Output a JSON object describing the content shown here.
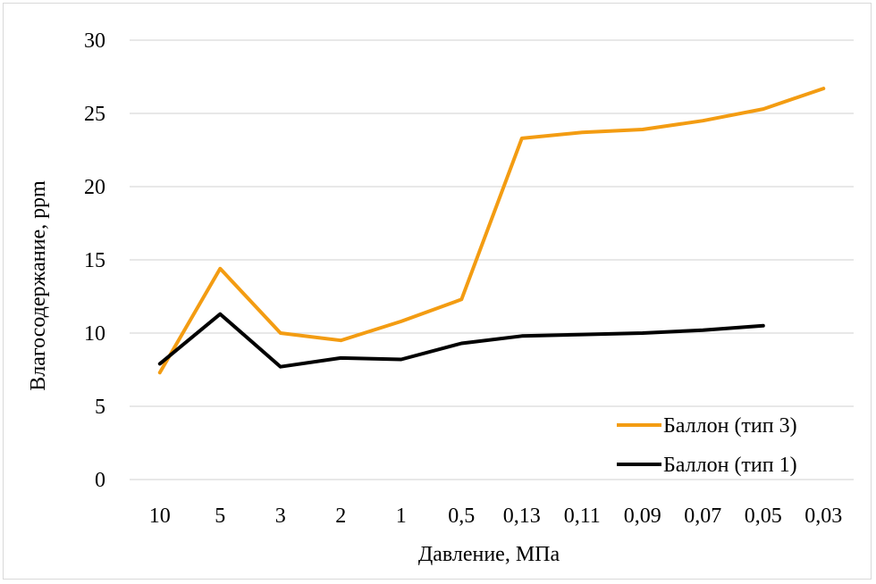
{
  "chart_data": {
    "type": "line",
    "title": "",
    "xlabel": "Давление, МПа",
    "ylabel": "Влагосодержание, ppm",
    "categories": [
      "10",
      "5",
      "3",
      "2",
      "1",
      "0,5",
      "0,13",
      "0,11",
      "0,09",
      "0,07",
      "0,05",
      "0,03"
    ],
    "ylim": [
      0,
      30
    ],
    "yticks": [
      0,
      5,
      10,
      15,
      20,
      25,
      30
    ],
    "grid": true,
    "legend_position": "bottom-right",
    "series": [
      {
        "name": "Баллон (тип 3)",
        "color": "#f39c12",
        "values": [
          7.3,
          14.4,
          10.0,
          9.5,
          10.8,
          12.3,
          23.3,
          23.7,
          23.9,
          24.5,
          25.3,
          26.7
        ]
      },
      {
        "name": "Баллон (тип 1)",
        "color": "#000000",
        "values": [
          7.9,
          11.3,
          7.7,
          8.3,
          8.2,
          9.3,
          9.8,
          9.9,
          10.0,
          10.2,
          10.5,
          null
        ]
      }
    ]
  }
}
